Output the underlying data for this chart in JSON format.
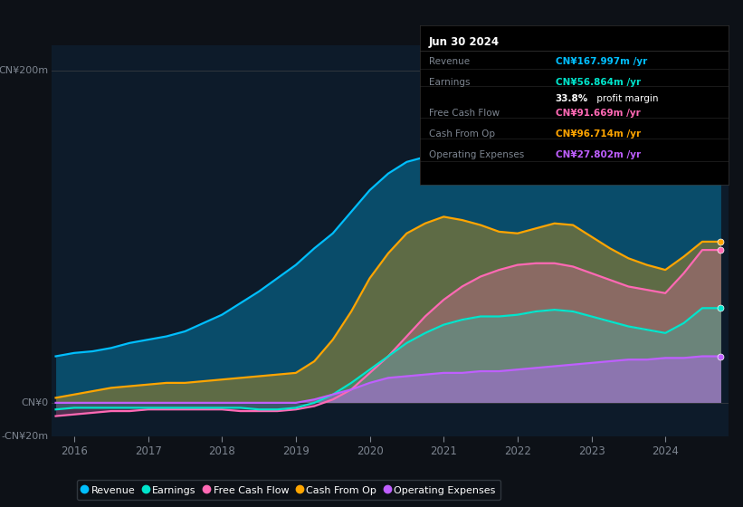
{
  "bg_color": "#0d1117",
  "plot_bg_color": "#0d1b2a",
  "ylim": [
    -20,
    215
  ],
  "xlim": [
    2015.7,
    2024.85
  ],
  "x_ticks": [
    2016,
    2017,
    2018,
    2019,
    2020,
    2021,
    2022,
    2023,
    2024
  ],
  "y_label_top": "CN¥200m",
  "y_label_zero": "CN¥0",
  "y_label_neg": "-CN¥20m",
  "info_box": {
    "date": "Jun 30 2024",
    "rows": [
      {
        "label": "Revenue",
        "value": "CN¥167.997m /yr",
        "color": "#00bfff"
      },
      {
        "label": "Earnings",
        "value": "CN¥56.864m /yr",
        "color": "#00e5cc"
      },
      {
        "label": "",
        "value": "",
        "color": "#ffffff"
      },
      {
        "label": "Free Cash Flow",
        "value": "CN¥91.669m /yr",
        "color": "#ff69b4"
      },
      {
        "label": "Cash From Op",
        "value": "CN¥96.714m /yr",
        "color": "#ffa500"
      },
      {
        "label": "Operating Expenses",
        "value": "CN¥27.802m /yr",
        "color": "#bf5fff"
      }
    ]
  },
  "series": {
    "years": [
      2015.75,
      2016.0,
      2016.25,
      2016.5,
      2016.75,
      2017.0,
      2017.25,
      2017.5,
      2017.75,
      2018.0,
      2018.25,
      2018.5,
      2018.75,
      2019.0,
      2019.25,
      2019.5,
      2019.75,
      2020.0,
      2020.25,
      2020.5,
      2020.75,
      2021.0,
      2021.25,
      2021.5,
      2021.75,
      2022.0,
      2022.25,
      2022.5,
      2022.75,
      2023.0,
      2023.25,
      2023.5,
      2023.75,
      2024.0,
      2024.25,
      2024.5,
      2024.75
    ],
    "revenue": [
      28,
      30,
      31,
      33,
      36,
      38,
      40,
      43,
      48,
      53,
      60,
      67,
      75,
      83,
      93,
      102,
      115,
      128,
      138,
      145,
      148,
      152,
      155,
      157,
      157,
      158,
      162,
      167,
      172,
      180,
      190,
      197,
      193,
      187,
      175,
      168,
      168
    ],
    "cash_from_op": [
      3,
      5,
      7,
      9,
      10,
      11,
      12,
      12,
      13,
      14,
      15,
      16,
      17,
      18,
      25,
      38,
      55,
      75,
      90,
      102,
      108,
      112,
      110,
      107,
      103,
      102,
      105,
      108,
      107,
      100,
      93,
      87,
      83,
      80,
      88,
      97,
      97
    ],
    "free_cash": [
      -8,
      -7,
      -6,
      -5,
      -5,
      -4,
      -4,
      -4,
      -4,
      -4,
      -5,
      -5,
      -5,
      -4,
      -2,
      2,
      8,
      18,
      28,
      40,
      52,
      62,
      70,
      76,
      80,
      83,
      84,
      84,
      82,
      78,
      74,
      70,
      68,
      66,
      78,
      92,
      92
    ],
    "earnings": [
      -4,
      -3,
      -3,
      -3,
      -3,
      -3,
      -3,
      -3,
      -3,
      -3,
      -3,
      -4,
      -4,
      -3,
      0,
      5,
      12,
      20,
      28,
      36,
      42,
      47,
      50,
      52,
      52,
      53,
      55,
      56,
      55,
      52,
      49,
      46,
      44,
      42,
      48,
      57,
      57
    ],
    "op_expenses": [
      0,
      0,
      0,
      0,
      0,
      0,
      0,
      0,
      0,
      0,
      0,
      0,
      0,
      0,
      2,
      5,
      8,
      12,
      15,
      16,
      17,
      18,
      18,
      19,
      19,
      20,
      21,
      22,
      23,
      24,
      25,
      26,
      26,
      27,
      27,
      28,
      28
    ]
  },
  "colors": {
    "revenue": "#00bfff",
    "earnings": "#00e5cc",
    "free_cash": "#ff69b4",
    "cash_from_op": "#ffa500",
    "op_expenses": "#bf5fff"
  },
  "legend_items": [
    {
      "label": "Revenue",
      "color": "#00bfff"
    },
    {
      "label": "Earnings",
      "color": "#00e5cc"
    },
    {
      "label": "Free Cash Flow",
      "color": "#ff69b4"
    },
    {
      "label": "Cash From Op",
      "color": "#ffa500"
    },
    {
      "label": "Operating Expenses",
      "color": "#bf5fff"
    }
  ]
}
